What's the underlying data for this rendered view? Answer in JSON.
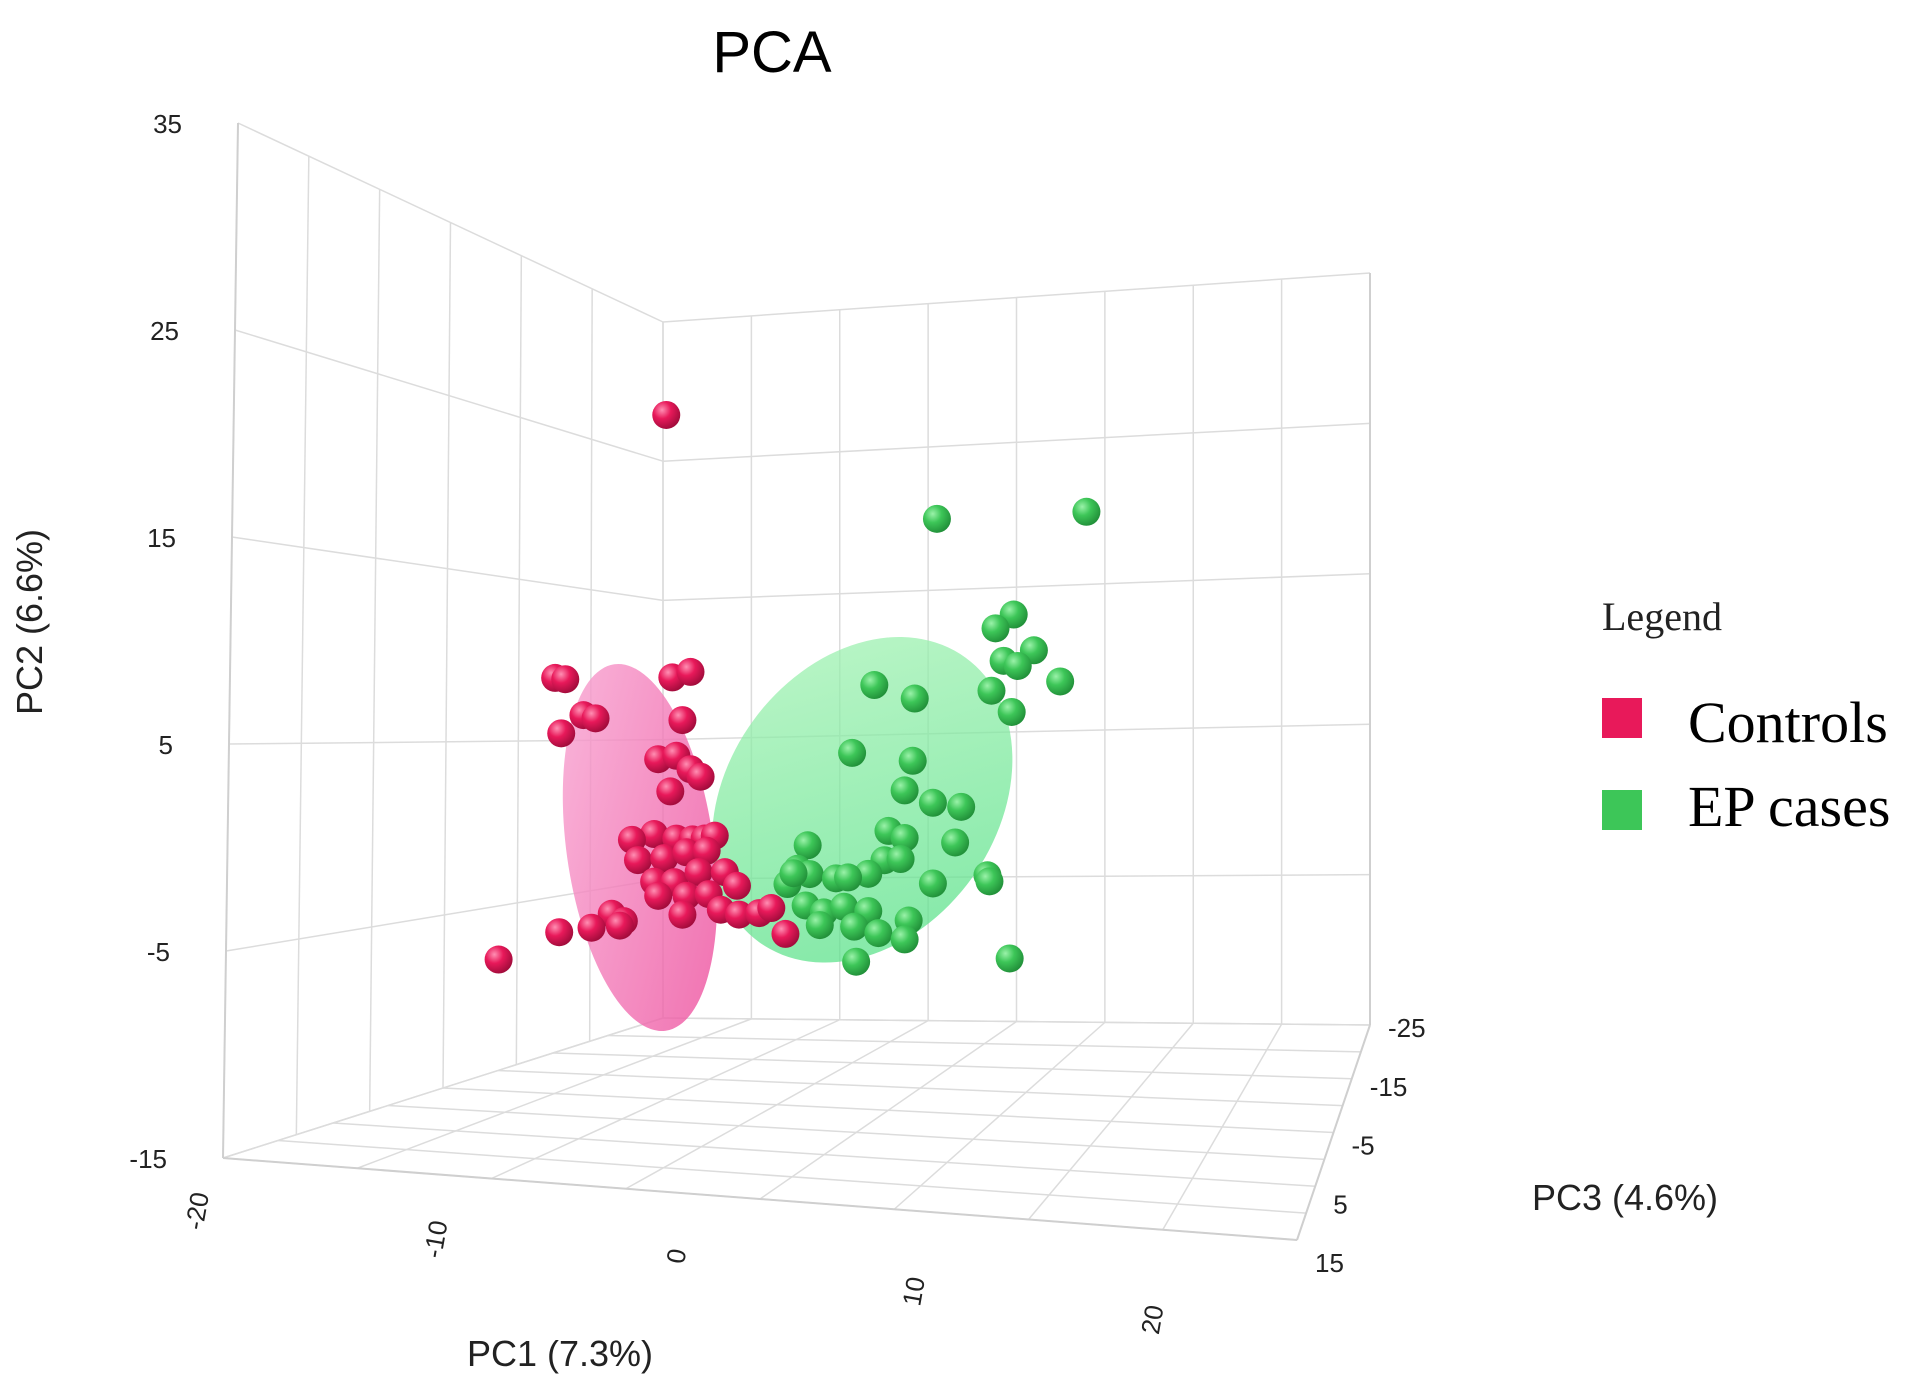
{
  "chart_data": {
    "type": "scatter",
    "dimensions": 3,
    "title": "PCA",
    "axes": {
      "x": {
        "label": "PC1 (7.3%)",
        "range": [
          -20,
          25
        ],
        "ticks": [
          -20,
          -10,
          0,
          10,
          20
        ]
      },
      "y": {
        "label": "PC2 (6.6%)",
        "range": [
          -15,
          35
        ],
        "ticks": [
          -15,
          -5,
          5,
          15,
          25,
          35
        ]
      },
      "z": {
        "label": "PC3 (4.6%)",
        "range": [
          -25,
          15
        ],
        "ticks": [
          -25,
          -15,
          -5,
          5,
          15
        ]
      }
    },
    "legend": {
      "title": "Legend",
      "position": "right"
    },
    "series": [
      {
        "name": "Controls",
        "color": "#e8195a",
        "ellipse_color": "#f472b6",
        "ellipse": {
          "center": [
            0,
            0,
            0
          ],
          "semi_axes_pc1_pc2": [
            3,
            10
          ],
          "tilt_deg": 8
        },
        "points": [
          [
            1.3,
            20.8,
            0
          ],
          [
            -4.2,
            8.5,
            0
          ],
          [
            -3.7,
            8.4,
            0
          ],
          [
            -2.8,
            6.6,
            0
          ],
          [
            -2.2,
            6.4,
            0
          ],
          [
            -3.9,
            5.8,
            0
          ],
          [
            1.6,
            8.1,
            0
          ],
          [
            2.5,
            8.3,
            0
          ],
          [
            2.1,
            6.0,
            0
          ],
          [
            0.9,
            4.2,
            0
          ],
          [
            1.8,
            4.3,
            0
          ],
          [
            2.5,
            3.6,
            0
          ],
          [
            1.5,
            2.6,
            0
          ],
          [
            3.0,
            3.2,
            0
          ],
          [
            0.7,
            0.6,
            0
          ],
          [
            1.8,
            0.3,
            0
          ],
          [
            2.6,
            0.2,
            0
          ],
          [
            3.2,
            0.2,
            0
          ],
          [
            3.7,
            0.3,
            0
          ],
          [
            -0.4,
            0.4,
            0
          ],
          [
            -0.1,
            -0.6,
            0
          ],
          [
            1.2,
            -0.6,
            0
          ],
          [
            2.3,
            -0.4,
            0
          ],
          [
            3.3,
            -0.4,
            0
          ],
          [
            0.7,
            -1.7,
            0
          ],
          [
            1.7,
            -1.8,
            0
          ],
          [
            2.9,
            -1.4,
            0
          ],
          [
            4.2,
            -1.5,
            0
          ],
          [
            0.9,
            -2.4,
            0
          ],
          [
            2.3,
            -2.5,
            0
          ],
          [
            3.4,
            -2.5,
            0
          ],
          [
            4.8,
            -2.2,
            0
          ],
          [
            -1.4,
            -3.1,
            0
          ],
          [
            -0.8,
            -3.5,
            0
          ],
          [
            2.1,
            -3.4,
            0
          ],
          [
            4.0,
            -3.3,
            0
          ],
          [
            -1.0,
            -3.7,
            0
          ],
          [
            -2.4,
            -3.7,
            0
          ],
          [
            -4.0,
            -3.8,
            0
          ],
          [
            4.9,
            -3.6,
            0
          ],
          [
            5.9,
            -3.6,
            0
          ],
          [
            6.5,
            -3.4,
            0
          ],
          [
            -7.0,
            -4.9,
            0
          ],
          [
            7.2,
            -4.7,
            0
          ]
        ]
      },
      {
        "name": "EP cases",
        "color": "#3dc658",
        "ellipse_color": "#77e08c",
        "ellipse": {
          "center": [
            11,
            1.5,
            0
          ],
          "semi_axes_pc1_pc2": [
            5.5,
            9.5
          ],
          "tilt_deg": -38
        },
        "points": [
          [
            14.7,
            14.8,
            0
          ],
          [
            22.1,
            14.6,
            0
          ],
          [
            18.5,
            9.9,
            0
          ],
          [
            17.6,
            9.3,
            0
          ],
          [
            19.5,
            8.1,
            0
          ],
          [
            18.0,
            7.7,
            0
          ],
          [
            18.7,
            7.4,
            0
          ],
          [
            17.4,
            6.3,
            0
          ],
          [
            13.6,
            6.2,
            0
          ],
          [
            20.8,
            6.5,
            0
          ],
          [
            11.6,
            7.0,
            0
          ],
          [
            18.4,
            5.2,
            0
          ],
          [
            10.5,
            3.8,
            0
          ],
          [
            13.5,
            3.2,
            0
          ],
          [
            13.1,
            1.8,
            0
          ],
          [
            14.5,
            1.1,
            0
          ],
          [
            15.9,
            0.8,
            0
          ],
          [
            12.3,
            -0.1,
            0
          ],
          [
            13.1,
            -0.5,
            0
          ],
          [
            15.6,
            -0.9,
            0
          ],
          [
            8.3,
            -0.5,
            0
          ],
          [
            12.1,
            -1.5,
            0
          ],
          [
            12.9,
            -1.5,
            0
          ],
          [
            11.3,
            -2.1,
            0
          ],
          [
            7.8,
            -1.6,
            0
          ],
          [
            8.4,
            -1.9,
            0
          ],
          [
            9.7,
            -2.2,
            0
          ],
          [
            10.3,
            -2.2,
            0
          ],
          [
            7.3,
            -2.3,
            0
          ],
          [
            14.5,
            -2.8,
            0
          ],
          [
            17.2,
            -2.6,
            0
          ],
          [
            17.3,
            -2.9,
            0
          ],
          [
            8.2,
            -3.4,
            0
          ],
          [
            9.1,
            -3.8,
            0
          ],
          [
            10.1,
            -3.6,
            0
          ],
          [
            11.3,
            -3.9,
            0
          ],
          [
            13.3,
            -4.5,
            0
          ],
          [
            10.6,
            -4.6,
            0
          ],
          [
            11.8,
            -5.0,
            0
          ],
          [
            13.1,
            -5.4,
            0
          ],
          [
            10.7,
            -6.3,
            0
          ],
          [
            18.3,
            -6.7,
            0
          ],
          [
            7.6,
            -1.8,
            0
          ],
          [
            8.9,
            -4.4,
            0
          ]
        ]
      }
    ]
  }
}
